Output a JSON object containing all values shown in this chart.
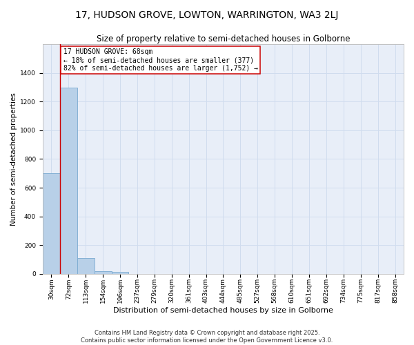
{
  "title": "17, HUDSON GROVE, LOWTON, WARRINGTON, WA3 2LJ",
  "subtitle": "Size of property relative to semi-detached houses in Golborne",
  "xlabel": "Distribution of semi-detached houses by size in Golborne",
  "ylabel": "Number of semi-detached properties",
  "categories": [
    "30sqm",
    "72sqm",
    "113sqm",
    "154sqm",
    "196sqm",
    "237sqm",
    "279sqm",
    "320sqm",
    "361sqm",
    "403sqm",
    "444sqm",
    "485sqm",
    "527sqm",
    "568sqm",
    "610sqm",
    "651sqm",
    "692sqm",
    "734sqm",
    "775sqm",
    "817sqm",
    "858sqm"
  ],
  "values": [
    700,
    1300,
    110,
    20,
    15,
    0,
    0,
    0,
    0,
    0,
    0,
    0,
    0,
    0,
    0,
    0,
    0,
    0,
    0,
    0,
    0
  ],
  "bar_color": "#b8d0e8",
  "bar_edge_color": "#7aaad0",
  "property_line_color": "#cc0000",
  "annotation_box_edge_color": "#cc0000",
  "annotation_box_face_color": "#ffffff",
  "annotation_text": "17 HUDSON GROVE: 68sqm\n← 18% of semi-detached houses are smaller (377)\n82% of semi-detached houses are larger (1,752) →",
  "grid_color": "#d0dcee",
  "background_color": "#e8eef8",
  "ylim": [
    0,
    1600
  ],
  "yticks": [
    0,
    200,
    400,
    600,
    800,
    1000,
    1200,
    1400
  ],
  "footer_text": "Contains HM Land Registry data © Crown copyright and database right 2025.\nContains public sector information licensed under the Open Government Licence v3.0.",
  "title_fontsize": 10,
  "subtitle_fontsize": 8.5,
  "xlabel_fontsize": 8,
  "ylabel_fontsize": 7.5,
  "tick_fontsize": 6.5,
  "annotation_fontsize": 7,
  "footer_fontsize": 6
}
